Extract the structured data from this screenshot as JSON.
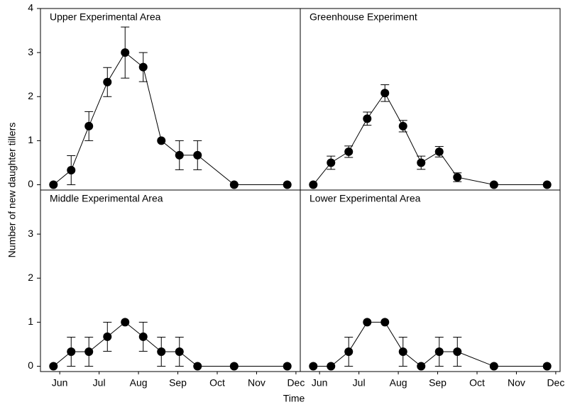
{
  "ylabel": "Number of new daughter tillers",
  "xlabel": "Time",
  "chart_data": [
    {
      "type": "line",
      "title": "Upper Experimental Area",
      "color": "#000000",
      "x": [
        5.84,
        6.29,
        6.74,
        7.21,
        7.66,
        8.12,
        8.58,
        9.04,
        9.5,
        10.43,
        11.78
      ],
      "values": [
        0,
        0.33,
        1.33,
        2.33,
        3,
        2.67,
        1,
        0.67,
        0.67,
        0,
        0
      ],
      "errors": [
        0,
        0.33,
        0.33,
        0.33,
        0.58,
        0.33,
        0,
        0.33,
        0.33,
        0,
        0
      ],
      "xlim": [
        5.51,
        12.11
      ],
      "ylim": [
        -0.12,
        4
      ],
      "yticks": [
        0,
        1,
        2,
        3,
        4
      ]
    },
    {
      "type": "line",
      "title": "Greenhouse Experiment",
      "color": "#000000",
      "x": [
        5.84,
        6.29,
        6.74,
        7.21,
        7.66,
        8.12,
        8.58,
        9.04,
        9.5,
        10.43,
        11.78
      ],
      "values": [
        0,
        0.5,
        0.75,
        1.5,
        2.08,
        1.33,
        0.5,
        0.75,
        0.17,
        0,
        0
      ],
      "errors": [
        0,
        0.15,
        0.13,
        0.15,
        0.19,
        0.13,
        0.15,
        0.12,
        0.1,
        0,
        0
      ],
      "xlim": [
        5.51,
        12.11
      ],
      "ylim": [
        -0.12,
        4
      ]
    },
    {
      "type": "line",
      "title": "Middle Experimental Area",
      "color": "#000000",
      "x": [
        5.84,
        6.29,
        6.74,
        7.21,
        7.66,
        8.12,
        8.58,
        9.04,
        9.5,
        10.43,
        11.78
      ],
      "values": [
        0,
        0.33,
        0.33,
        0.67,
        1,
        0.67,
        0.33,
        0.33,
        0,
        0,
        0
      ],
      "errors": [
        0,
        0.33,
        0.33,
        0.33,
        0,
        0.33,
        0.33,
        0.33,
        0,
        0,
        0
      ],
      "xlim": [
        5.51,
        12.11
      ],
      "ylim": [
        -0.12,
        4
      ],
      "yticks": [
        0,
        1,
        2,
        3
      ],
      "xticks": [
        {
          "value": 6,
          "label": "Jun"
        },
        {
          "value": 7,
          "label": "Jul"
        },
        {
          "value": 8,
          "label": "Aug"
        },
        {
          "value": 9,
          "label": "Sep"
        },
        {
          "value": 10,
          "label": "Oct"
        },
        {
          "value": 11,
          "label": "Nov"
        },
        {
          "value": 12,
          "label": "Dec"
        }
      ]
    },
    {
      "type": "line",
      "title": "Lower Experimental Area",
      "color": "#000000",
      "x": [
        5.84,
        6.29,
        6.74,
        7.21,
        7.66,
        8.12,
        8.58,
        9.04,
        9.5,
        10.43,
        11.78
      ],
      "values": [
        0,
        0,
        0.33,
        1,
        1,
        0.33,
        0,
        0.33,
        0.33,
        0,
        0
      ],
      "errors": [
        0,
        0,
        0.33,
        0,
        0,
        0.33,
        0,
        0.33,
        0.33,
        0,
        0
      ],
      "xlim": [
        5.51,
        12.11
      ],
      "ylim": [
        -0.12,
        4
      ],
      "xticks": [
        {
          "value": 6,
          "label": "Jun"
        },
        {
          "value": 7,
          "label": "Jul"
        },
        {
          "value": 8,
          "label": "Aug"
        },
        {
          "value": 9,
          "label": "Sep"
        },
        {
          "value": 10,
          "label": "Oct"
        },
        {
          "value": 11,
          "label": "Nov"
        },
        {
          "value": 12,
          "label": "Dec"
        }
      ]
    }
  ]
}
